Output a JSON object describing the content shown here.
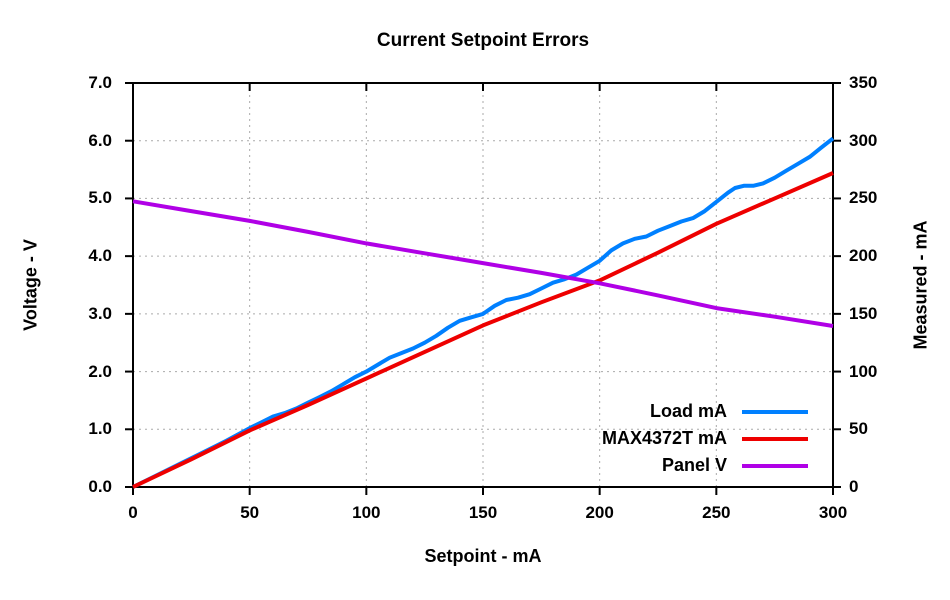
{
  "title": "Current Setpoint Errors",
  "axes": {
    "x": {
      "label": "Setpoint - mA",
      "min": 0,
      "max": 300,
      "ticks": [
        "0",
        "50",
        "100",
        "150",
        "200",
        "250",
        "300"
      ],
      "grid_ticks": [
        50,
        100,
        150,
        200,
        250
      ]
    },
    "y_left": {
      "label": "Voltage - V",
      "min": 0,
      "max": 7,
      "ticks": [
        "0.0",
        "1.0",
        "2.0",
        "3.0",
        "4.0",
        "5.0",
        "6.0",
        "7.0"
      ],
      "grid_ticks": [
        1,
        2,
        3,
        4,
        5,
        6
      ]
    },
    "y_right": {
      "label": "Measured - mA",
      "min": 0,
      "max": 350,
      "ticks": [
        "0",
        "50",
        "100",
        "150",
        "200",
        "250",
        "300",
        "350"
      ]
    }
  },
  "legend": [
    {
      "label": "Load mA",
      "color": "#0080ff"
    },
    {
      "label": "MAX4372T mA",
      "color": "#ee0000"
    },
    {
      "label": "Panel V",
      "color": "#b000e6"
    }
  ],
  "style": {
    "grid_color": "#aaaaaa",
    "border_color": "#000000",
    "background": "#ffffff",
    "line_width": 4
  },
  "chart_data": {
    "type": "line",
    "title": "Current Setpoint Errors",
    "xlabel": "Setpoint - mA",
    "ylabel_left": "Voltage - V",
    "ylabel_right": "Measured - mA",
    "xlim": [
      0,
      300
    ],
    "ylim_left_volts": [
      0,
      7
    ],
    "ylim_right_ma": [
      0,
      350
    ],
    "grid": "dashed",
    "legend_position": "inside bottom-right",
    "series": [
      {
        "name": "Load mA",
        "axis": "right",
        "unit": "mA",
        "color": "#0080ff",
        "x": [
          0,
          10,
          20,
          30,
          40,
          50,
          55,
          60,
          65,
          70,
          75,
          80,
          85,
          90,
          95,
          100,
          105,
          110,
          115,
          120,
          125,
          130,
          135,
          140,
          145,
          150,
          155,
          160,
          165,
          170,
          175,
          180,
          185,
          190,
          195,
          200,
          205,
          210,
          215,
          220,
          225,
          230,
          235,
          240,
          245,
          250,
          255,
          258,
          262,
          266,
          270,
          275,
          280,
          285,
          290,
          295,
          300
        ],
        "values": [
          0,
          10,
          20,
          30,
          40,
          51,
          56,
          61,
          64,
          68,
          73,
          78,
          83,
          89,
          95,
          100,
          106,
          112,
          116,
          120,
          125,
          131,
          138,
          144,
          147,
          150,
          157,
          162,
          164,
          167,
          172,
          177,
          180,
          184,
          190,
          196,
          205,
          211,
          215,
          217,
          222,
          226,
          230,
          233,
          239,
          247,
          255,
          259,
          261,
          261,
          263,
          268,
          274,
          280,
          286,
          294,
          302
        ]
      },
      {
        "name": "MAX4372T mA",
        "axis": "right",
        "unit": "mA",
        "color": "#ee0000",
        "x": [
          0,
          25,
          50,
          75,
          100,
          125,
          150,
          175,
          200,
          225,
          250,
          275,
          300
        ],
        "values": [
          0,
          24,
          49,
          71,
          94,
          117,
          140,
          160,
          179,
          203,
          228,
          250,
          272
        ]
      },
      {
        "name": "Panel V",
        "axis": "left",
        "unit": "V",
        "color": "#b000e6",
        "x": [
          0,
          25,
          50,
          75,
          100,
          125,
          150,
          175,
          200,
          225,
          250,
          275,
          300
        ],
        "values": [
          4.95,
          4.78,
          4.61,
          4.42,
          4.22,
          4.05,
          3.88,
          3.71,
          3.53,
          3.32,
          3.1,
          2.95,
          2.79
        ]
      }
    ]
  }
}
